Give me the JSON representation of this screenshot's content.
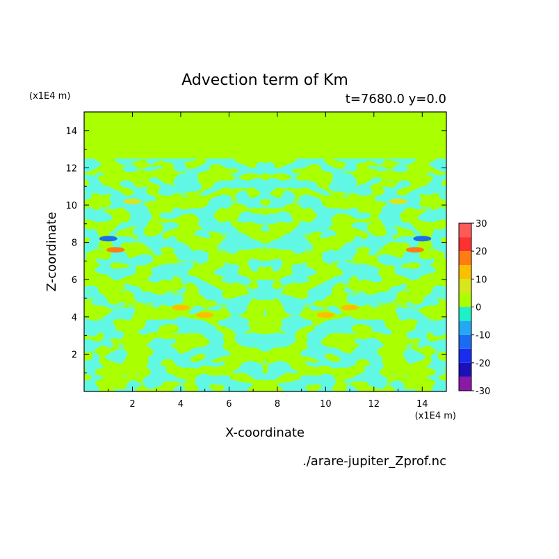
{
  "chart_data": {
    "type": "heatmap",
    "title": "Advection term of Km",
    "time_label": "t=7680.0 y=0.0",
    "xlabel": "X-coordinate",
    "ylabel": "Z-coordinate",
    "x_unit": "(x1E4 m)",
    "y_unit": "(x1E4 m)",
    "file_label": "./arare-jupiter_Zprof.nc",
    "xlim": [
      0,
      15
    ],
    "ylim": [
      0,
      15
    ],
    "xticks": [
      2,
      4,
      6,
      8,
      10,
      12,
      14
    ],
    "yticks": [
      2,
      4,
      6,
      8,
      10,
      12,
      14
    ],
    "tick_labels_x": [
      "2",
      "4",
      "6",
      "8",
      "10",
      "12",
      "14"
    ],
    "tick_labels_y": [
      "2",
      "4",
      "6",
      "8",
      "10",
      "12",
      "14"
    ],
    "field_top_z": 12.5,
    "colorbar": {
      "levels": [
        -30,
        -25,
        -20,
        -15,
        -10,
        -5,
        0,
        5,
        10,
        15,
        20,
        25,
        30
      ],
      "colors": [
        "#8a18a8",
        "#1c10b8",
        "#1a2cf0",
        "#1a6cf0",
        "#24a8f4",
        "#1ef0c8",
        "#aaff00",
        "#d8e61c",
        "#fac000",
        "#ff7c10",
        "#ff3030",
        "#ff5a5a",
        "#ffaaaa"
      ],
      "labels": [
        "-30",
        "-20",
        "-10",
        "0",
        "10",
        "20",
        "30"
      ],
      "label_values": [
        -30,
        -20,
        -10,
        0,
        10,
        20,
        30
      ]
    },
    "features": [
      {
        "x": 1.3,
        "z": 7.6,
        "value": 15
      },
      {
        "x": 13.7,
        "z": 7.6,
        "value": 15
      },
      {
        "x": 1.0,
        "z": 8.2,
        "value": -12
      },
      {
        "x": 14.0,
        "z": 8.2,
        "value": -12
      },
      {
        "x": 2.0,
        "z": 10.2,
        "value": 8
      },
      {
        "x": 13.0,
        "z": 10.2,
        "value": 8
      },
      {
        "x": 4.0,
        "z": 4.5,
        "value": 10
      },
      {
        "x": 11.0,
        "z": 4.5,
        "value": 10
      },
      {
        "x": 5.0,
        "z": 4.1,
        "value": 10
      },
      {
        "x": 10.0,
        "z": 4.1,
        "value": 10
      }
    ]
  }
}
